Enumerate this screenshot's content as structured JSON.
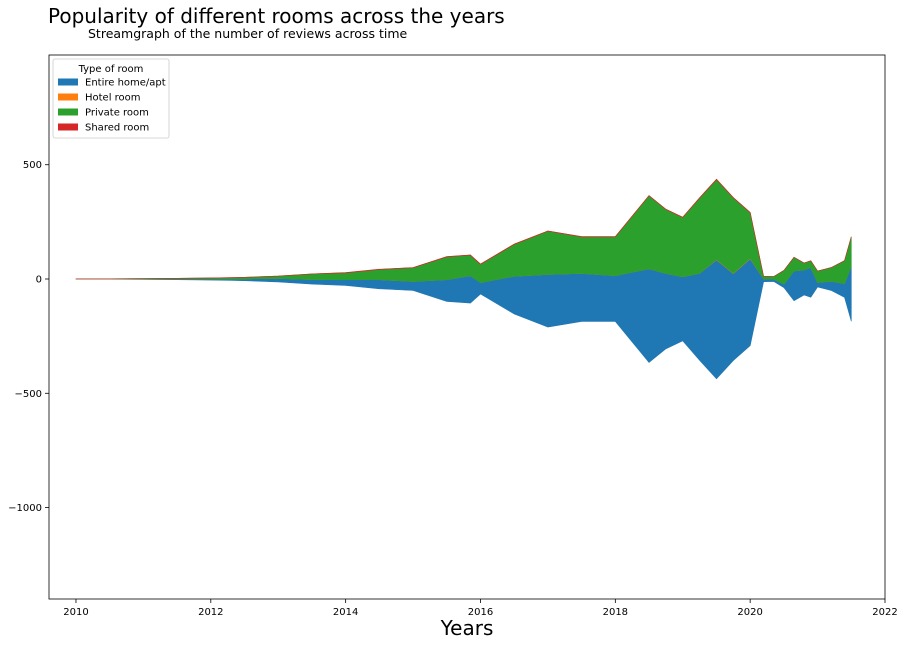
{
  "chart_data": {
    "type": "area",
    "title": "Popularity of different rooms across the years",
    "subtitle": "Streamgraph of the number of reviews across time",
    "xlabel": "Years",
    "ylabel": "",
    "xlim": [
      2009.6,
      2022.0
    ],
    "ylim": [
      -1400,
      980
    ],
    "xticks": [
      2010,
      2012,
      2014,
      2016,
      2018,
      2020,
      2022
    ],
    "yticks": [
      -1000,
      -500,
      0,
      500
    ],
    "legend": {
      "title": "Type of room",
      "position": "top-left",
      "entries": [
        "Entire home/apt",
        "Hotel room",
        "Private room",
        "Shared room"
      ]
    },
    "colors": {
      "Entire home/apt": "#1f77b4",
      "Hotel room": "#ff7f0e",
      "Private room": "#2ca02c",
      "Shared room": "#d62728"
    },
    "grid": false,
    "x": [
      2010.0,
      2010.5,
      2011.0,
      2011.5,
      2012.0,
      2012.25,
      2012.5,
      2013.0,
      2013.5,
      2014.0,
      2014.5,
      2015.0,
      2015.5,
      2015.85,
      2016.0,
      2016.5,
      2017.0,
      2017.5,
      2018.0,
      2018.5,
      2018.75,
      2019.0,
      2019.25,
      2019.5,
      2019.75,
      2020.0,
      2020.2,
      2020.35,
      2020.5,
      2020.65,
      2020.8,
      2020.9,
      2021.0,
      2021.2,
      2021.4,
      2021.5
    ],
    "series": [
      {
        "name": "Entire home/apt",
        "values": [
          1,
          1,
          2,
          3,
          5,
          6,
          8,
          15,
          20,
          25,
          40,
          40,
          95,
          120,
          50,
          165,
          230,
          210,
          200,
          410,
          330,
          280,
          380,
          520,
          380,
          380,
          12,
          10,
          15,
          130,
          110,
          130,
          20,
          40,
          60,
          240
        ]
      },
      {
        "name": "Hotel room",
        "values": [
          0,
          0,
          0,
          0,
          0,
          0,
          0,
          0,
          0,
          0,
          0,
          0,
          0,
          0,
          0,
          0,
          0,
          0,
          0,
          0,
          0,
          0,
          0,
          2,
          2,
          2,
          0,
          0,
          0,
          0,
          0,
          0,
          0,
          0,
          0,
          0
        ]
      },
      {
        "name": "Private room",
        "values": [
          1,
          1,
          2,
          3,
          5,
          5,
          7,
          10,
          25,
          30,
          45,
          60,
          100,
          90,
          80,
          140,
          190,
          160,
          170,
          320,
          280,
          260,
          330,
          350,
          330,
          200,
          12,
          12,
          60,
          60,
          30,
          30,
          50,
          60,
          100,
          130
        ]
      },
      {
        "name": "Shared room",
        "values": [
          0,
          0,
          0,
          0,
          0,
          0,
          0,
          0,
          0,
          1,
          1,
          1,
          1,
          1,
          1,
          1,
          1,
          1,
          1,
          1,
          1,
          1,
          1,
          1,
          1,
          1,
          0,
          0,
          0,
          0,
          0,
          0,
          0,
          0,
          0,
          0
        ]
      }
    ]
  }
}
